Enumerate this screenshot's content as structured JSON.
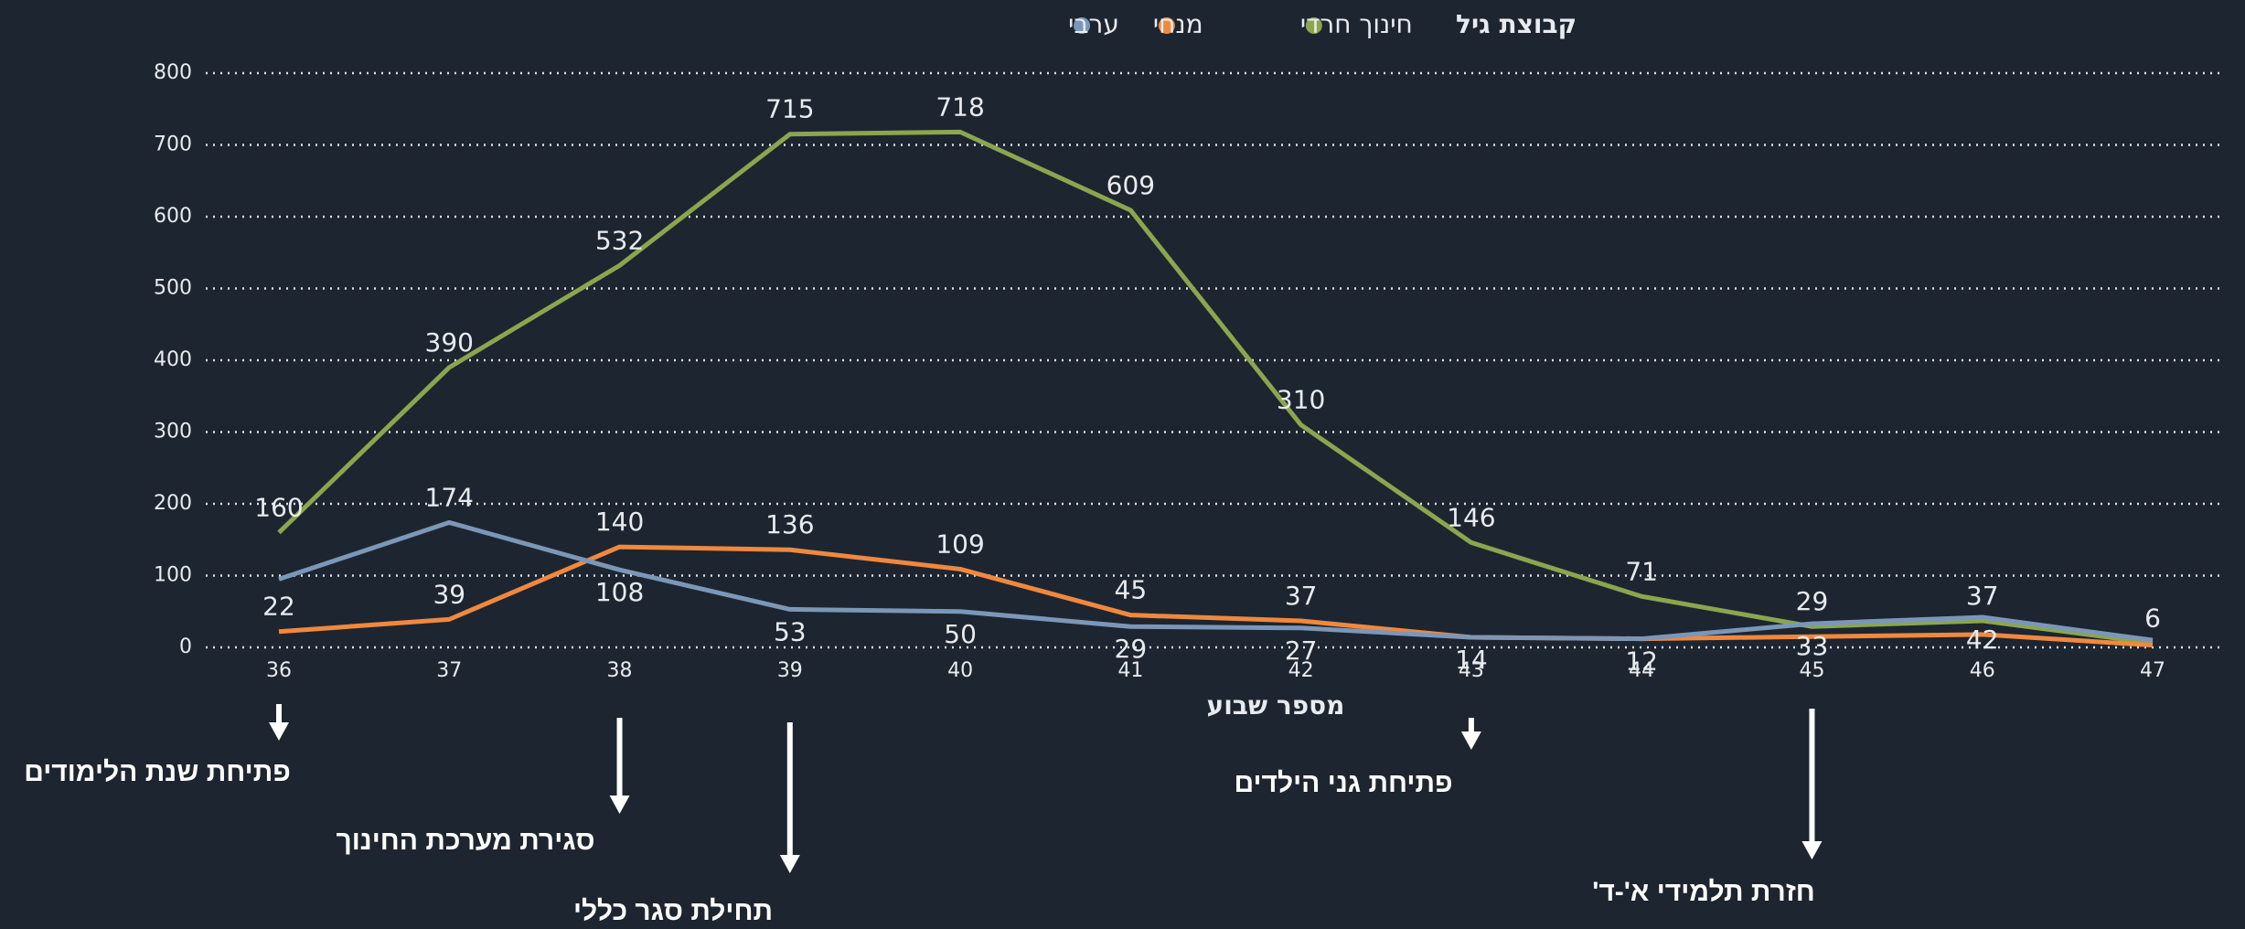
{
  "chart_data": {
    "type": "line",
    "legend_title": "קבוצת גיל",
    "x_label": "מספר שבוע",
    "x": [
      36,
      37,
      38,
      39,
      40,
      41,
      42,
      43,
      44,
      45,
      46,
      47
    ],
    "xlim": [
      36,
      47
    ],
    "xticks": [
      36,
      37,
      38,
      39,
      40,
      41,
      42,
      43,
      44,
      45,
      46,
      47
    ],
    "ylim": [
      0,
      800
    ],
    "yticks": [
      0,
      100,
      200,
      300,
      400,
      500,
      600,
      700,
      800
    ],
    "grid": true,
    "series": [
      {
        "name": "חינוך חרדי",
        "color": "#8aa64e",
        "values": [
          160,
          390,
          532,
          715,
          718,
          609,
          310,
          146,
          71,
          29,
          37,
          6
        ],
        "value_labels": [
          "160",
          "390",
          "532",
          "715",
          "718",
          "609",
          "310",
          "146",
          "71",
          "29",
          "37",
          "6"
        ]
      },
      {
        "name": "מנחי",
        "color": "#f0883e",
        "values": [
          22,
          39,
          140,
          136,
          109,
          45,
          37,
          14,
          12,
          15,
          18,
          3
        ],
        "value_labels": [
          "22",
          "39",
          "140",
          "136",
          "109",
          "45",
          "37",
          null,
          null,
          null,
          null,
          null
        ]
      },
      {
        "name": "ערבי",
        "color": "#7b97b8",
        "values": [
          95,
          174,
          108,
          53,
          50,
          29,
          27,
          14,
          12,
          33,
          42,
          10
        ],
        "value_labels": [
          null,
          "174",
          "108",
          "53",
          "50",
          "29",
          "27",
          "14",
          "12",
          "33",
          "42",
          null
        ]
      }
    ],
    "annotations": [
      {
        "text": "פתיחת שנת הלימודים",
        "x": 36
      },
      {
        "text": "סגירת מערכת החינוך",
        "x": 38
      },
      {
        "text": "תחילת סגר כללי",
        "x": 39
      },
      {
        "text": "פתיחת גני הילדים",
        "x": 43
      },
      {
        "text": "חזרת תלמידי א'-ד'",
        "x": 45
      }
    ]
  }
}
